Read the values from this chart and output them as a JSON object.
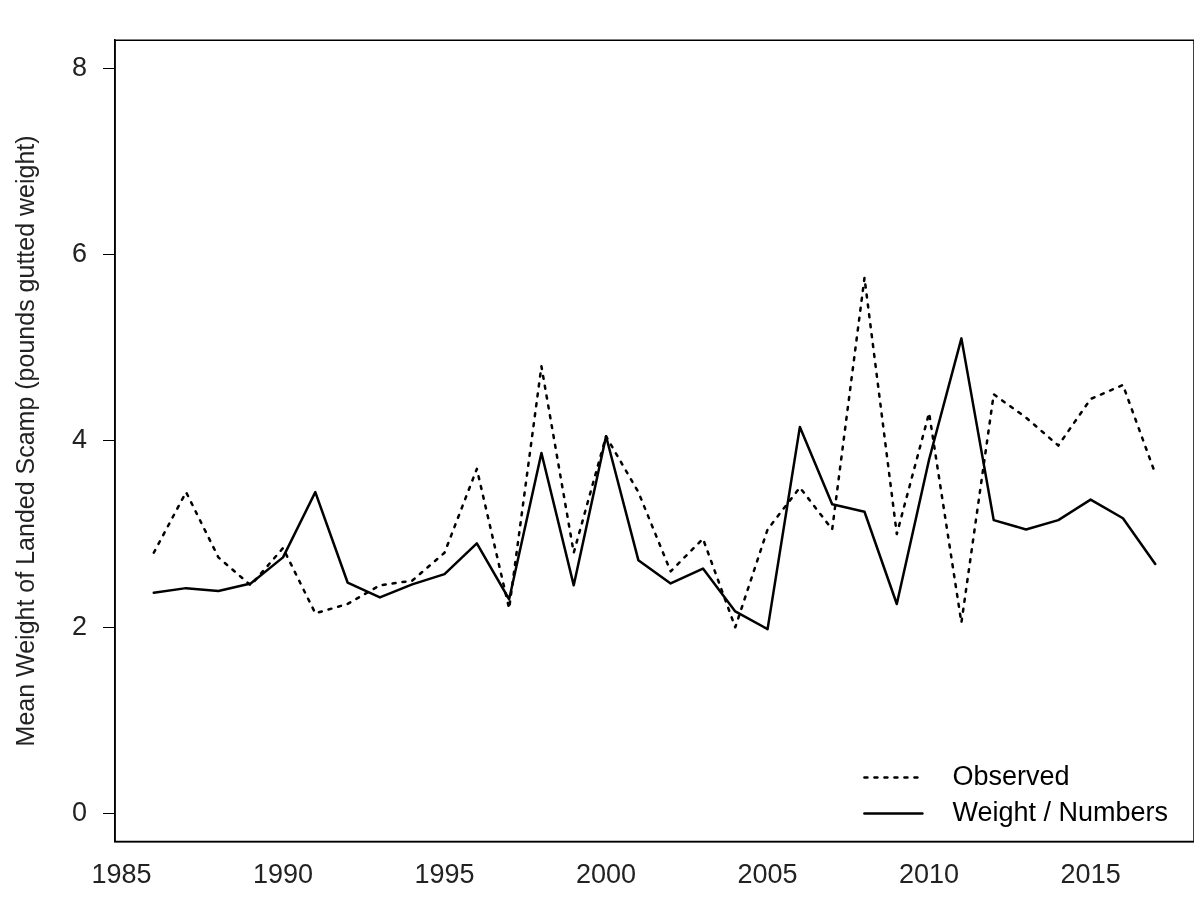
{
  "chart_data": {
    "type": "line",
    "ylabel": "Mean Weight of Landed Scamp (pounds gutted weight)",
    "x": [
      1986,
      1987,
      1988,
      1989,
      1990,
      1991,
      1992,
      1993,
      1994,
      1995,
      1996,
      1997,
      1998,
      1999,
      2000,
      2001,
      2002,
      2003,
      2004,
      2005,
      2006,
      2007,
      2008,
      2009,
      2010,
      2011,
      2012,
      2013,
      2014,
      2015,
      2016,
      2017
    ],
    "series": [
      {
        "name": "Observed",
        "color": "#000000",
        "line_style": "dotted",
        "values": [
          2.8,
          3.45,
          2.75,
          2.45,
          2.85,
          2.15,
          2.25,
          2.45,
          2.5,
          2.8,
          3.7,
          2.2,
          4.8,
          2.8,
          4.05,
          3.45,
          2.6,
          2.95,
          2.0,
          3.05,
          3.5,
          3.05,
          5.75,
          3.0,
          4.3,
          2.05,
          4.5,
          4.25,
          3.95,
          4.45,
          4.6,
          3.65
        ]
      },
      {
        "name": "Weight / Numbers",
        "color": "#000000",
        "line_style": "solid",
        "values": [
          2.37,
          2.42,
          2.39,
          2.47,
          2.75,
          3.45,
          2.48,
          2.32,
          2.46,
          2.57,
          2.9,
          2.3,
          3.87,
          2.45,
          4.05,
          2.72,
          2.47,
          2.63,
          2.17,
          1.98,
          4.15,
          3.32,
          3.24,
          2.25,
          3.8,
          5.1,
          3.15,
          3.05,
          3.15,
          3.37,
          3.17,
          2.68
        ]
      }
    ],
    "xlim": [
      1984.8,
      2018.2
    ],
    "xticks": [
      1985,
      1990,
      1995,
      2000,
      2005,
      2010,
      2015
    ],
    "ylim": [
      -0.3,
      8.3
    ],
    "yticks": [
      0,
      2,
      4,
      6,
      8
    ],
    "grid": false,
    "legend": "bottom right",
    "marker": "none"
  }
}
